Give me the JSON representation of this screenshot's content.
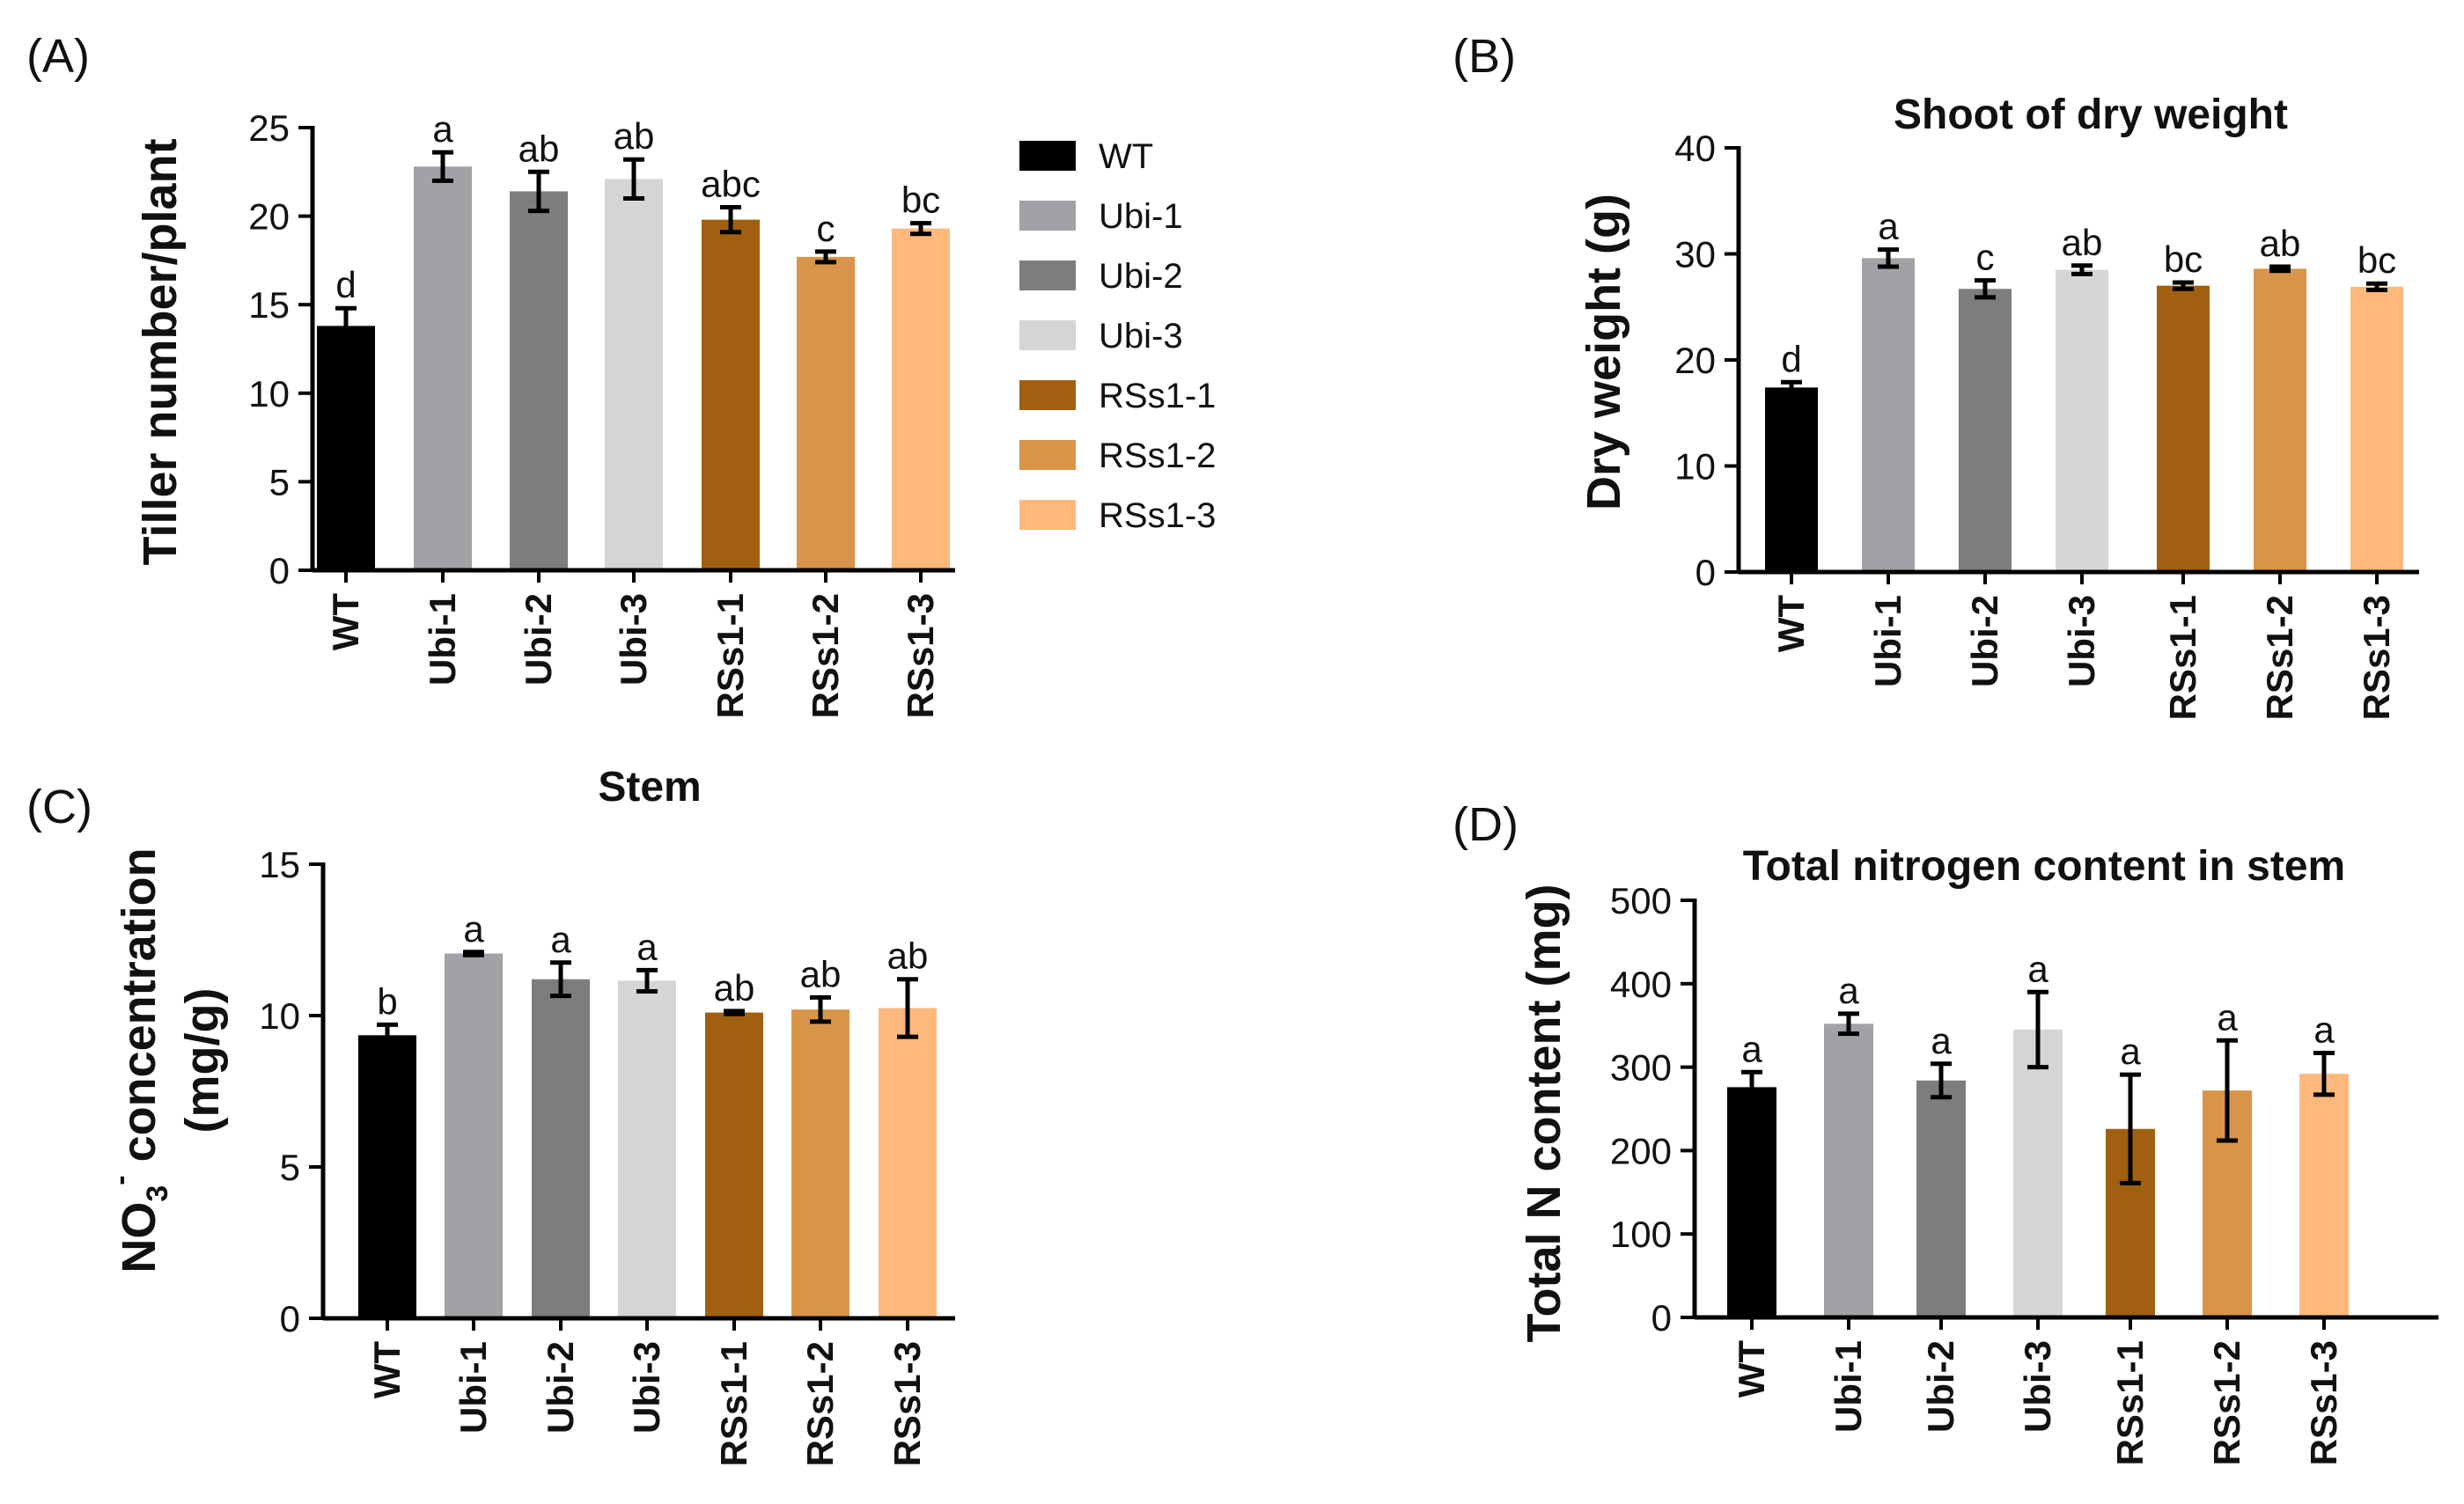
{
  "colors": {
    "WT": "#000000",
    "Ubi-1": "#a1a1a6",
    "Ubi-2": "#7d7d7d",
    "Ubi-3": "#d5d5d5",
    "RSs1-1": "#a0600f",
    "RSs1-2": "#d89549",
    "RSs1-3": "#fdb97c"
  },
  "legend": [
    "WT",
    "Ubi-1",
    "Ubi-2",
    "Ubi-3",
    "RSs1-1",
    "RSs1-2",
    "RSs1-3"
  ],
  "chart_data": [
    {
      "id": "A",
      "panel_label": "(A)",
      "type": "bar",
      "title": "",
      "xlabel": "",
      "ylabel": "Tiller number/plant",
      "categories": [
        "WT",
        "Ubi-1",
        "Ubi-2",
        "Ubi-3",
        "RSs1-1",
        "RSs1-2",
        "RSs1-3"
      ],
      "values": [
        13.8,
        22.8,
        21.4,
        22.1,
        19.8,
        17.7,
        19.3
      ],
      "errors": [
        1.0,
        0.8,
        1.1,
        1.1,
        0.7,
        0.3,
        0.3
      ],
      "significance": [
        "d",
        "a",
        "ab",
        "ab",
        "abc",
        "c",
        "bc"
      ],
      "ylim": [
        0,
        25
      ],
      "yticks": [
        "0",
        "5",
        "10",
        "15",
        "20",
        "25"
      ]
    },
    {
      "id": "B",
      "panel_label": "(B)",
      "type": "bar",
      "title": "Shoot of dry weight",
      "xlabel": "",
      "ylabel": "Dry weight (g)",
      "categories": [
        "WT",
        "Ubi-1",
        "Ubi-2",
        "Ubi-3",
        "RSs1-1",
        "RSs1-2",
        "RSs1-3"
      ],
      "values": [
        17.4,
        29.6,
        26.7,
        28.5,
        27.0,
        28.6,
        26.9
      ],
      "errors": [
        0.5,
        0.8,
        0.8,
        0.4,
        0.3,
        0.2,
        0.3
      ],
      "significance": [
        "d",
        "a",
        "c",
        "ab",
        "bc",
        "ab",
        "bc"
      ],
      "ylim": [
        0,
        40
      ],
      "yticks": [
        "0",
        "10",
        "20",
        "30",
        "40"
      ]
    },
    {
      "id": "C",
      "panel_label": "(C)",
      "type": "bar",
      "title": "Stem",
      "xlabel": "",
      "ylabel_line1": "NO3- concentration",
      "ylabel_line1_main": "NO",
      "ylabel_line1_sub": "3",
      "ylabel_line1_sup": "-",
      "ylabel_line1_rest": " concentration",
      "ylabel_line2": "(mg/g)",
      "categories": [
        "WT",
        "Ubi-1",
        "Ubi-2",
        "Ubi-3",
        "RSs1-1",
        "RSs1-2",
        "RSs1-3"
      ],
      "values": [
        9.35,
        12.05,
        11.2,
        11.15,
        10.1,
        10.2,
        10.25
      ],
      "errors": [
        0.35,
        0.05,
        0.55,
        0.35,
        0.05,
        0.4,
        0.95
      ],
      "significance": [
        "b",
        "a",
        "a",
        "a",
        "ab",
        "ab",
        "ab"
      ],
      "ylim": [
        0,
        15
      ],
      "yticks": [
        "0",
        "5",
        "10",
        "15"
      ]
    },
    {
      "id": "D",
      "panel_label": "(D)",
      "type": "bar",
      "title": "Total nitrogen content in stem",
      "xlabel": "",
      "ylabel": "Total N content (mg)",
      "categories": [
        "WT",
        "Ubi-1",
        "Ubi-2",
        "Ubi-3",
        "RSs1-1",
        "RSs1-2",
        "RSs1-3"
      ],
      "values": [
        276,
        352,
        284,
        345,
        226,
        272,
        292
      ],
      "errors": [
        18,
        12,
        20,
        45,
        65,
        60,
        25
      ],
      "significance": [
        "a",
        "a",
        "a",
        "a",
        "a",
        "a",
        "a"
      ],
      "ylim": [
        0,
        500
      ],
      "yticks": [
        "0",
        "100",
        "200",
        "300",
        "400",
        "500"
      ]
    }
  ]
}
